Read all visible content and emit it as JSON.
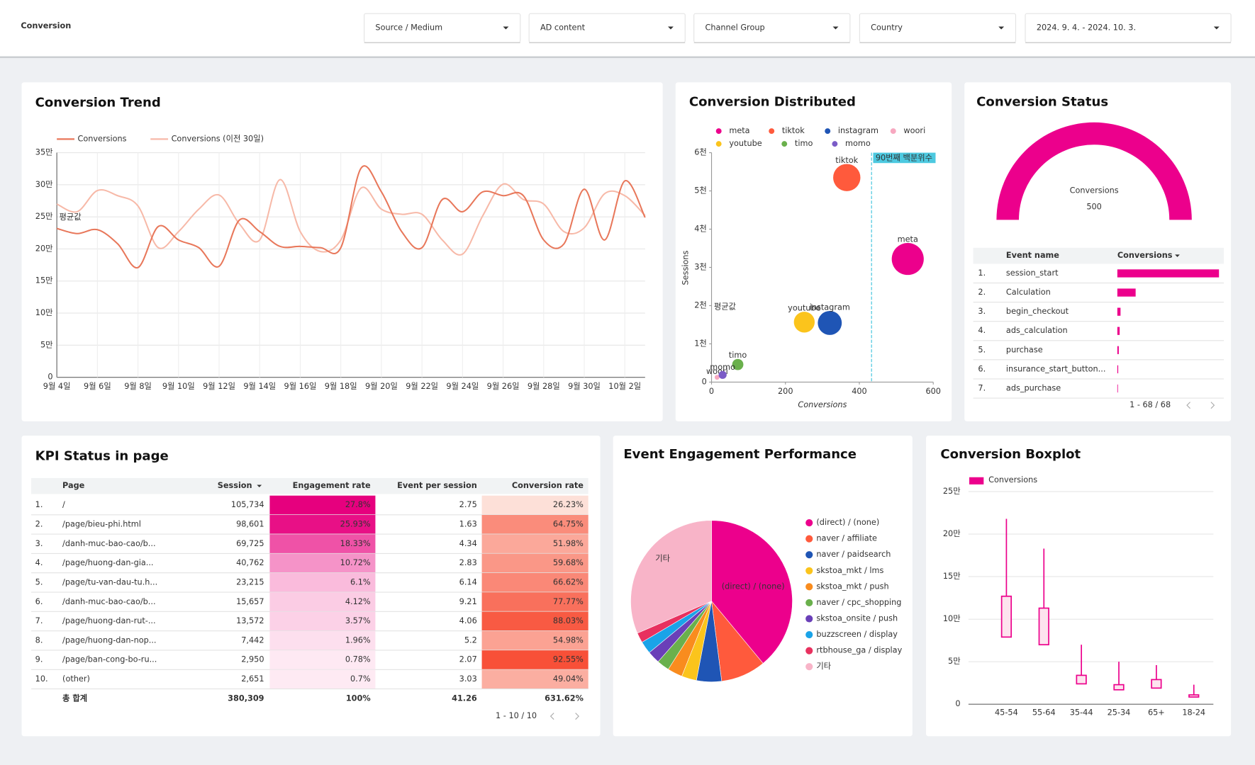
{
  "header": {
    "title": "Conversion",
    "filters": [
      "Source / Medium",
      "AD content",
      "Channel Group",
      "Country",
      "2024. 9. 4. - 2024. 10. 3."
    ]
  },
  "trend": {
    "type": "line",
    "title": "Conversion Trend",
    "annotation": "평균값",
    "categories": [
      "9월 4일",
      null,
      "9월 6일",
      null,
      "9월 8일",
      null,
      "9월 10일",
      null,
      "9월 12일",
      null,
      "9월 14일",
      null,
      "9월 16일",
      null,
      "9월 18일",
      null,
      "9월 20일",
      null,
      "9월 22일",
      null,
      "9월 24일",
      null,
      "9월 26일",
      null,
      "9월 28일",
      null,
      "9월 30일",
      null,
      "10월 2일",
      null
    ],
    "series": [
      {
        "name": "Conversions",
        "color": "#e8775a",
        "values": [
          232000,
          224000,
          230000,
          208000,
          171000,
          235000,
          214000,
          202000,
          173000,
          245000,
          227000,
          204000,
          204000,
          202000,
          202000,
          326000,
          289000,
          227000,
          202000,
          277000,
          258000,
          289000,
          283000,
          283000,
          214000,
          208000,
          293000,
          214000,
          306000,
          249000
        ]
      },
      {
        "name": "Conversions (이전 30일)",
        "color": "#f7b9a8",
        "values": [
          270000,
          258000,
          291000,
          283000,
          267000,
          202000,
          227000,
          262000,
          284000,
          239000,
          214000,
          308000,
          227000,
          196000,
          214000,
          295000,
          262000,
          254000,
          254000,
          214000,
          192000,
          252000,
          301000,
          277000,
          270000,
          227000,
          233000,
          286000,
          283000,
          252000
        ]
      }
    ],
    "ylim": [
      0,
      350000
    ],
    "yticks": [
      0,
      {
        "value": 50000,
        "label": "5만"
      },
      {
        "value": 100000,
        "label": "10만"
      },
      {
        "value": 150000,
        "label": "15만"
      },
      {
        "value": 200000,
        "label": "20만"
      },
      {
        "value": 250000,
        "label": "25만"
      },
      {
        "value": 300000,
        "label": "30만"
      },
      {
        "value": 350000,
        "label": "35만"
      }
    ],
    "grid": true
  },
  "scatter": {
    "type": "scatter",
    "title": "Conversion Distributed",
    "x_label": "Conversions",
    "y_label": "Sessions",
    "annotation": "평균값",
    "xlim": [
      0,
      600
    ],
    "xticks": [
      0,
      200,
      400,
      600
    ],
    "ylim": [
      0,
      6000
    ],
    "yticks": [
      0,
      {
        "value": 1000,
        "label": "1천"
      },
      {
        "value": 2000,
        "label": "2천"
      },
      {
        "value": 3000,
        "label": "3천"
      },
      {
        "value": 4000,
        "label": "4천"
      },
      {
        "value": 5000,
        "label": "5천"
      },
      {
        "value": 6000,
        "label": "6천"
      }
    ],
    "reference_line": {
      "label": "90번째 백분위수",
      "value": 433
    },
    "points": [
      {
        "name": "meta",
        "color": "#ec008c",
        "x": 531,
        "y": 3220,
        "size": 20
      },
      {
        "name": "tiktok",
        "color": "#ff5a3c",
        "x": 366,
        "y": 5350,
        "size": 17
      },
      {
        "name": "instagram",
        "color": "#1f55b5",
        "x": 320,
        "y": 1547,
        "size": 15
      },
      {
        "name": "woori",
        "color": "#f7a8c0",
        "x": 15,
        "y": 125,
        "size": 3
      },
      {
        "name": "youtube",
        "color": "#fbc41c",
        "x": 251,
        "y": 1568,
        "size": 13
      },
      {
        "name": "timo",
        "color": "#6ab04c",
        "x": 71,
        "y": 460,
        "size": 7
      },
      {
        "name": "momo",
        "color": "#7b5cc7",
        "x": 30,
        "y": 188,
        "size": 5
      }
    ]
  },
  "gauge": {
    "type": "gauge",
    "title": "Conversion Status",
    "label": "Conversions",
    "value": 500,
    "color": "#ec008c"
  },
  "events": {
    "type": "bar-table",
    "headers": [
      "Event name",
      "Conversions"
    ],
    "color": "#ec008c",
    "pagination": "1 - 68 / 68",
    "rows": [
      {
        "rank": "1.",
        "name": "session_start",
        "value": 350
      },
      {
        "rank": "2.",
        "name": "Calculation",
        "value": 63
      },
      {
        "rank": "3.",
        "name": "begin_checkout",
        "value": 11
      },
      {
        "rank": "4.",
        "name": "ads_calculation",
        "value": 8
      },
      {
        "rank": "5.",
        "name": "purchase",
        "value": 5
      },
      {
        "rank": "6.",
        "name": "insurance_start_button...",
        "value": 3
      },
      {
        "rank": "7.",
        "name": "ads_purchase",
        "value": 2
      }
    ]
  },
  "kpi": {
    "title": "KPI Status in page",
    "headers": [
      "Page",
      "Session",
      "Engagement rate",
      "Event per session",
      "Conversion rate"
    ],
    "pagination": "1 - 10 / 10",
    "rows": [
      [
        "1.",
        "/",
        "105,734",
        "27.8%",
        "2.75",
        "26.23%"
      ],
      [
        "2.",
        "/page/bieu-phi.html",
        "98,601",
        "25.93%",
        "1.63",
        "64.75%"
      ],
      [
        "3.",
        "/danh-muc-bao-cao/b...",
        "69,725",
        "18.33%",
        "4.34",
        "51.98%"
      ],
      [
        "4.",
        "/page/huong-dan-gia...",
        "40,762",
        "10.72%",
        "2.83",
        "59.68%"
      ],
      [
        "5.",
        "/page/tu-van-dau-tu.h...",
        "23,215",
        "6.1%",
        "6.14",
        "66.62%"
      ],
      [
        "6.",
        "/danh-muc-bao-cao/b...",
        "15,657",
        "4.12%",
        "9.21",
        "77.77%"
      ],
      [
        "7.",
        "/page/huong-dan-rut-...",
        "13,572",
        "3.57%",
        "4.06",
        "88.03%"
      ],
      [
        "8.",
        "/page/huong-dan-nop...",
        "7,442",
        "1.96%",
        "5.2",
        "54.98%"
      ],
      [
        "9.",
        "/page/ban-cong-bo-ru...",
        "2,950",
        "0.78%",
        "2.07",
        "92.55%"
      ],
      [
        "10.",
        "(other)",
        "2,651",
        "0.7%",
        "3.03",
        "49.04%"
      ]
    ],
    "total": [
      "총 합계",
      "380,309",
      "100%",
      "41.26",
      "631.62%"
    ]
  },
  "pie": {
    "type": "pie",
    "title": "Event Engagement Performance",
    "categories": [
      "(direct) / (none)",
      "naver / affiliate",
      "naver / paidsearch",
      "skstoa_mkt / lms",
      "skstoa_mkt / push",
      "naver / cpc_shopping",
      "skstoa_onsite / push",
      "buzzscreen / display",
      "rtbhouse_ga / display",
      "기타"
    ],
    "colors": [
      "#ec008c",
      "#ff5a3c",
      "#1f55b5",
      "#fbc41c",
      "#f98c1e",
      "#6ab04c",
      "#6a3fb8",
      "#1aa3e8",
      "#e8315f",
      "#f8b4c8"
    ],
    "values": [
      39,
      9,
      5,
      3,
      3,
      2.5,
      2.5,
      2.5,
      2,
      31.5
    ]
  },
  "box": {
    "type": "box",
    "title": "Conversion Boxplot",
    "legend": "Conversions",
    "color": "#ec008c",
    "categories": [
      "45-54",
      "55-64",
      "35-44",
      "25-34",
      "65+",
      "18-24"
    ],
    "max": [
      218000,
      183000,
      70000,
      50000,
      46000,
      23000
    ],
    "q3": [
      127000,
      113000,
      34000,
      23000,
      29000,
      11000
    ],
    "q1": [
      79000,
      70000,
      24000,
      17000,
      19000,
      8500
    ],
    "min": [
      79000,
      70000,
      24000,
      17000,
      19000,
      8500
    ],
    "ylim": [
      0,
      250000
    ],
    "yticks": [
      0,
      {
        "value": 50000,
        "label": "5만"
      },
      {
        "value": 100000,
        "label": "10만"
      },
      {
        "value": 150000,
        "label": "15만"
      },
      {
        "value": 200000,
        "label": "20만"
      },
      {
        "value": 250000,
        "label": "25만"
      }
    ]
  }
}
